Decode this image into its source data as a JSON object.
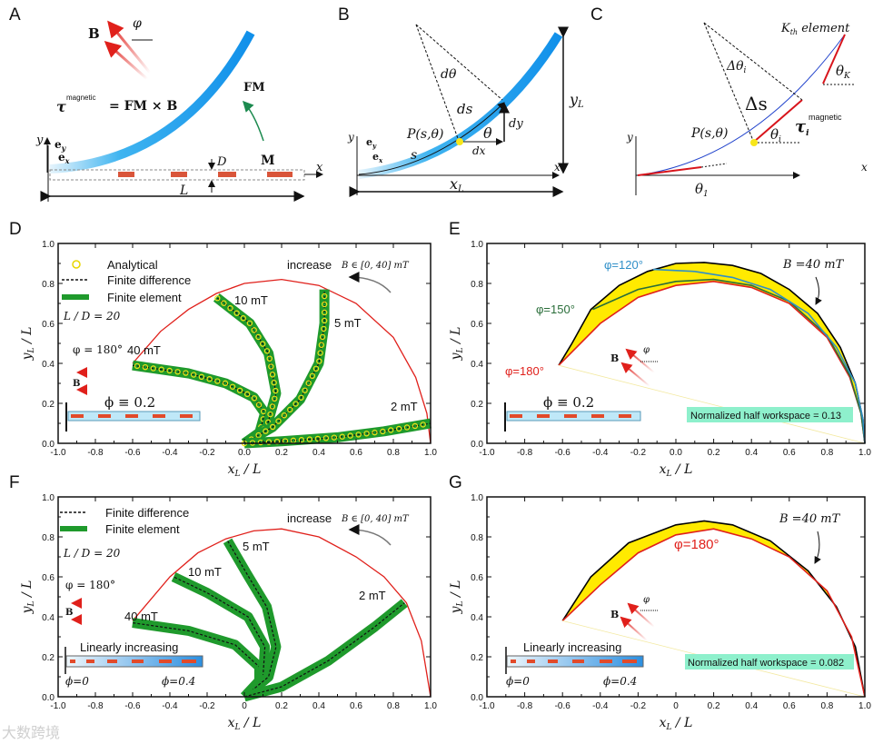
{
  "panel_labels": [
    "A",
    "B",
    "C",
    "D",
    "E",
    "F",
    "G"
  ],
  "panel_a": {
    "field": "B",
    "angle": "φ",
    "torque_symbol": "τ",
    "torque_sup": "magnetic",
    "torque_eq": "= FM × B",
    "fm": "FM",
    "m": "M",
    "d": "D",
    "l": "L",
    "x": "x",
    "y": "y",
    "ey": "e",
    "ey_sub": "y",
    "ex": "e",
    "ex_sub": "x"
  },
  "panel_b": {
    "dtheta": "dθ",
    "ds": "ds",
    "dy": "dy",
    "dx": "dx",
    "theta": "θ",
    "point": "P(s,θ)",
    "s": "s",
    "yl": "y",
    "yl_sub": "L",
    "xl": "x",
    "xl_sub": "L",
    "x": "x",
    "y": "y",
    "ey": "e",
    "ey_sub": "y",
    "ex": "e",
    "ex_sub": "x"
  },
  "panel_c": {
    "kth": "K",
    "kth_sub": "th",
    "kth_rest": " element",
    "dtheta": "Δθ",
    "dtheta_sub": "i",
    "ds": "Δs",
    "tau": "τ",
    "tau_sub": "i",
    "tau_sup": "magnetic",
    "point": "P(s,θ)",
    "theta_i": "θ",
    "theta_i_sub": "i",
    "theta_k": "θ",
    "theta_k_sub": "K",
    "theta_1": "θ",
    "theta_1_sub": "1",
    "x": "x",
    "y": "y"
  },
  "colors": {
    "workspace": "#e0201b",
    "fe": "#1f9a2c",
    "analytical": "#f2e21a",
    "region": "#ffea00",
    "phi150": "#2a6e3a",
    "phi120": "#2f8fc8",
    "badge": "#8ef0cc",
    "beam": "#1e9bef"
  },
  "chart_data": [
    {
      "panel": "D",
      "type": "line",
      "xlim": [
        -1,
        1
      ],
      "ylim": [
        0,
        1
      ],
      "xticks": [
        "-1.0",
        "-0.8",
        "-0.6",
        "-0.4",
        "-0.2",
        "0.0",
        "0.2",
        "0.4",
        "0.6",
        "0.8",
        "1.0"
      ],
      "yticks": [
        "0.0",
        "0.2",
        "0.4",
        "0.6",
        "0.8",
        "1.0"
      ],
      "xlabel": {
        "var": "x",
        "sub": "L",
        "rest": " / L"
      },
      "ylabel": {
        "var": "y",
        "sub": "L",
        "rest": " / L"
      },
      "legend": [
        "Analytical",
        "Finite difference",
        "Finite element"
      ],
      "annotations": {
        "ratio": "L / D = 20",
        "angle": "φ = 180°",
        "field": "B",
        "phi": "ϕ ≡ 0.2",
        "increase": "increase",
        "range": "B ∈ [0, 40] mT",
        "l40": "40 mT",
        "l10": "10 mT",
        "l5": "5 mT",
        "l2": "2 mT"
      },
      "series": [
        {
          "name": "workspace",
          "style": "line",
          "color": "#e0201b",
          "points": [
            [
              -0.6,
              0.4
            ],
            [
              -0.45,
              0.56
            ],
            [
              -0.3,
              0.67
            ],
            [
              -0.15,
              0.75
            ],
            [
              0,
              0.8
            ],
            [
              0.2,
              0.82
            ],
            [
              0.4,
              0.79
            ],
            [
              0.6,
              0.7
            ],
            [
              0.8,
              0.53
            ],
            [
              0.92,
              0.33
            ],
            [
              0.98,
              0.15
            ],
            [
              1,
              0
            ]
          ]
        },
        {
          "name": "40 mT",
          "style": "rod",
          "points": [
            [
              0,
              0
            ],
            [
              0.08,
              0.05
            ],
            [
              0.11,
              0.15
            ],
            [
              0.05,
              0.23
            ],
            [
              -0.1,
              0.3
            ],
            [
              -0.3,
              0.35
            ],
            [
              -0.6,
              0.39
            ]
          ]
        },
        {
          "name": "10 mT",
          "style": "rod",
          "points": [
            [
              0,
              0
            ],
            [
              0.12,
              0.08
            ],
            [
              0.17,
              0.25
            ],
            [
              0.13,
              0.45
            ],
            [
              0.03,
              0.6
            ],
            [
              -0.15,
              0.73
            ]
          ]
        },
        {
          "name": "5 mT",
          "style": "rod",
          "points": [
            [
              0,
              0
            ],
            [
              0.15,
              0.08
            ],
            [
              0.3,
              0.22
            ],
            [
              0.4,
              0.4
            ],
            [
              0.43,
              0.6
            ],
            [
              0.43,
              0.77
            ]
          ]
        },
        {
          "name": "2 mT",
          "style": "rod",
          "points": [
            [
              0,
              0
            ],
            [
              0.2,
              0.01
            ],
            [
              0.5,
              0.03
            ],
            [
              0.75,
              0.06
            ],
            [
              1.0,
              0.1
            ]
          ]
        }
      ]
    },
    {
      "panel": "E",
      "type": "area",
      "xlim": [
        -1,
        1
      ],
      "ylim": [
        0,
        1
      ],
      "xticks": [
        "-1.0",
        "-0.8",
        "-0.6",
        "-0.4",
        "-0.2",
        "0.0",
        "0.2",
        "0.4",
        "0.6",
        "0.8",
        "1.0"
      ],
      "yticks": [
        "0.0",
        "0.2",
        "0.4",
        "0.6",
        "0.8",
        "1.0"
      ],
      "xlabel": {
        "var": "x",
        "sub": "L",
        "rest": " / L"
      },
      "ylabel": {
        "var": "y",
        "sub": "L",
        "rest": " / L"
      },
      "annotations": {
        "b40": "B =40 mT",
        "p120": "φ=120°",
        "p150": "φ=150°",
        "p180": "φ=180°",
        "field": "B",
        "angle": "φ",
        "phi": "ϕ ≡ 0.2",
        "workspace": "Normalized half workspace = 0.13"
      },
      "fill_between": [
        "envelope",
        "φ=180°"
      ],
      "series": [
        {
          "name": "envelope",
          "style": "line",
          "color": "#000000",
          "points": [
            [
              -0.62,
              0.39
            ],
            [
              -0.55,
              0.5
            ],
            [
              -0.45,
              0.67
            ],
            [
              -0.3,
              0.79
            ],
            [
              -0.15,
              0.86
            ],
            [
              0,
              0.9
            ],
            [
              0.15,
              0.905
            ],
            [
              0.3,
              0.89
            ],
            [
              0.45,
              0.85
            ],
            [
              0.6,
              0.77
            ],
            [
              0.75,
              0.65
            ],
            [
              0.87,
              0.48
            ],
            [
              0.95,
              0.3
            ],
            [
              0.99,
              0.12
            ],
            [
              1,
              0
            ]
          ]
        },
        {
          "name": "φ=180°",
          "style": "line",
          "color": "#e0201b",
          "points": [
            [
              -0.62,
              0.39
            ],
            [
              -0.4,
              0.6
            ],
            [
              -0.2,
              0.73
            ],
            [
              0,
              0.79
            ],
            [
              0.2,
              0.81
            ],
            [
              0.4,
              0.78
            ],
            [
              0.6,
              0.7
            ],
            [
              0.8,
              0.53
            ],
            [
              0.92,
              0.33
            ],
            [
              0.98,
              0.15
            ],
            [
              1,
              0
            ]
          ]
        },
        {
          "name": "φ=150°",
          "style": "line",
          "color": "#2a6e3a",
          "points": [
            [
              -0.44,
              0.67
            ],
            [
              -0.2,
              0.77
            ],
            [
              0,
              0.81
            ],
            [
              0.2,
              0.82
            ],
            [
              0.4,
              0.79
            ],
            [
              0.6,
              0.71
            ],
            [
              0.8,
              0.54
            ],
            [
              0.92,
              0.34
            ],
            [
              0.98,
              0.15
            ],
            [
              1,
              0
            ]
          ]
        },
        {
          "name": "φ=120°",
          "style": "line",
          "color": "#2f8fc8",
          "points": [
            [
              -0.12,
              0.87
            ],
            [
              0.1,
              0.86
            ],
            [
              0.3,
              0.83
            ],
            [
              0.5,
              0.77
            ],
            [
              0.7,
              0.65
            ],
            [
              0.85,
              0.48
            ],
            [
              0.95,
              0.3
            ],
            [
              0.99,
              0.12
            ],
            [
              1,
              0
            ]
          ]
        }
      ]
    },
    {
      "panel": "F",
      "type": "line",
      "xlim": [
        -1,
        1
      ],
      "ylim": [
        0,
        1
      ],
      "xticks": [
        "-1.0",
        "-0.8",
        "-0.6",
        "-0.4",
        "-0.2",
        "0",
        "0.2",
        "0.4",
        "0.6",
        "0.8",
        "1.0"
      ],
      "yticks": [
        "0.0",
        "0.2",
        "0.4",
        "0.6",
        "0.8",
        "1.0"
      ],
      "xlabel": {
        "var": "x",
        "sub": "L",
        "rest": " / L"
      },
      "ylabel": {
        "var": "y",
        "sub": "L",
        "rest": " / L"
      },
      "legend": [
        "Finite difference",
        "Finite element"
      ],
      "annotations": {
        "ratio": "L / D = 20",
        "angle": "φ = 180°",
        "field": "B",
        "lin": "Linearly increasing",
        "phi0": "ϕ=0",
        "phi4": "ϕ=0.4",
        "increase": "increase",
        "range": "B ∈ [0, 40] mT",
        "l40": "40 mT",
        "l10": "10 mT",
        "l5": "5 mT",
        "l2": "2 mT"
      },
      "series": [
        {
          "name": "workspace",
          "style": "line",
          "color": "#e0201b",
          "points": [
            [
              -0.6,
              0.38
            ],
            [
              -0.4,
              0.6
            ],
            [
              -0.25,
              0.72
            ],
            [
              -0.1,
              0.79
            ],
            [
              0.05,
              0.83
            ],
            [
              0.2,
              0.84
            ],
            [
              0.4,
              0.8
            ],
            [
              0.6,
              0.7
            ],
            [
              0.75,
              0.6
            ],
            [
              0.87,
              0.47
            ],
            [
              0.95,
              0.28
            ],
            [
              1,
              0
            ]
          ]
        },
        {
          "name": "40 mT",
          "style": "rod",
          "points": [
            [
              0,
              0
            ],
            [
              0.08,
              0.05
            ],
            [
              0.08,
              0.15
            ],
            [
              -0.05,
              0.26
            ],
            [
              -0.3,
              0.33
            ],
            [
              -0.6,
              0.37
            ]
          ]
        },
        {
          "name": "10 mT",
          "style": "rod",
          "points": [
            [
              0,
              0
            ],
            [
              0.1,
              0.1
            ],
            [
              0.11,
              0.25
            ],
            [
              0.02,
              0.4
            ],
            [
              -0.2,
              0.52
            ],
            [
              -0.38,
              0.6
            ]
          ]
        },
        {
          "name": "5 mT",
          "style": "rod",
          "points": [
            [
              0,
              0
            ],
            [
              0.13,
              0.1
            ],
            [
              0.17,
              0.25
            ],
            [
              0.12,
              0.45
            ],
            [
              0.01,
              0.62
            ],
            [
              -0.09,
              0.78
            ]
          ]
        },
        {
          "name": "2 mT",
          "style": "rod",
          "points": [
            [
              0,
              0
            ],
            [
              0.2,
              0.05
            ],
            [
              0.45,
              0.18
            ],
            [
              0.7,
              0.35
            ],
            [
              0.86,
              0.47
            ]
          ]
        }
      ]
    },
    {
      "panel": "G",
      "type": "area",
      "xlim": [
        -1,
        1
      ],
      "ylim": [
        0,
        1
      ],
      "xticks": [
        "-1.0",
        "-0.8",
        "-0.6",
        "-0.4",
        "-0.2",
        "0",
        "0.2",
        "0.4",
        "0.6",
        "0.8",
        "1.0"
      ],
      "yticks": [
        "0.0",
        "0.2",
        "0.4",
        "0.6",
        "0.8",
        "1.0"
      ],
      "xlabel": {
        "var": "x",
        "sub": "L",
        "rest": " / L"
      },
      "ylabel": {
        "var": "y",
        "sub": "L",
        "rest": " / L"
      },
      "annotations": {
        "b40": "B =40 mT",
        "p180": "φ=180°",
        "field": "B",
        "angle": "φ",
        "lin": "Linearly increasing",
        "phi0": "ϕ=0",
        "phi4": "ϕ=0.4",
        "workspace": "Normalized half workspace = 0.082"
      },
      "fill_between": [
        "envelope",
        "φ=180°"
      ],
      "series": [
        {
          "name": "envelope",
          "style": "line",
          "color": "#000000",
          "points": [
            [
              -0.6,
              0.38
            ],
            [
              -0.45,
              0.6
            ],
            [
              -0.25,
              0.77
            ],
            [
              0,
              0.86
            ],
            [
              0.15,
              0.88
            ],
            [
              0.3,
              0.86
            ],
            [
              0.5,
              0.78
            ],
            [
              0.7,
              0.63
            ],
            [
              0.85,
              0.45
            ],
            [
              0.95,
              0.25
            ],
            [
              1,
              0
            ]
          ]
        },
        {
          "name": "φ=180°",
          "style": "line",
          "color": "#e0201b",
          "points": [
            [
              -0.6,
              0.38
            ],
            [
              -0.4,
              0.56
            ],
            [
              -0.2,
              0.72
            ],
            [
              0,
              0.81
            ],
            [
              0.2,
              0.84
            ],
            [
              0.4,
              0.79
            ],
            [
              0.6,
              0.7
            ],
            [
              0.8,
              0.53
            ],
            [
              0.93,
              0.3
            ],
            [
              1,
              0
            ]
          ]
        }
      ]
    }
  ],
  "watermark": "大数跨境"
}
